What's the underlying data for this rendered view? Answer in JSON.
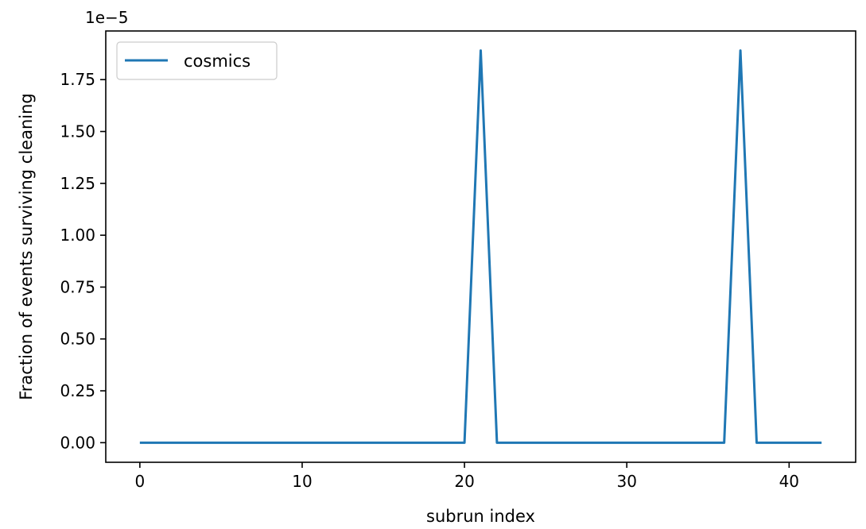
{
  "chart_data": {
    "type": "line",
    "title": "",
    "xlabel": "subrun index",
    "ylabel": "Fraction of events surviving cleaning",
    "y_offset_label": "1e−5",
    "y_scale": 1e-05,
    "xlim": [
      -2.1,
      44.1
    ],
    "ylim": [
      -9.45e-07,
      1.9845e-05
    ],
    "x_ticks": [
      0,
      10,
      20,
      30,
      40
    ],
    "x_tick_labels": [
      "0",
      "10",
      "20",
      "30",
      "40"
    ],
    "y_ticks": [
      0,
      2.5e-06,
      5e-06,
      7.5e-06,
      1e-05,
      1.25e-05,
      1.5e-05,
      1.75e-05
    ],
    "y_tick_labels": [
      "0.00",
      "0.25",
      "0.50",
      "0.75",
      "1.00",
      "1.25",
      "1.50",
      "1.75"
    ],
    "grid": false,
    "legend_position": "top-left",
    "series": [
      {
        "name": "cosmics",
        "color": "#1f77b4",
        "x": [
          0,
          1,
          2,
          3,
          4,
          5,
          6,
          7,
          8,
          9,
          10,
          11,
          12,
          13,
          14,
          15,
          16,
          17,
          18,
          19,
          20,
          21,
          22,
          23,
          24,
          25,
          26,
          27,
          28,
          29,
          30,
          31,
          32,
          33,
          34,
          35,
          36,
          37,
          38,
          39,
          40,
          41,
          42
        ],
        "y": [
          0,
          0,
          0,
          0,
          0,
          0,
          0,
          0,
          0,
          0,
          0,
          0,
          0,
          0,
          0,
          0,
          0,
          0,
          0,
          0,
          0,
          1.89e-05,
          0,
          0,
          0,
          0,
          0,
          0,
          0,
          0,
          0,
          0,
          0,
          0,
          0,
          0,
          0,
          1.89e-05,
          0,
          0,
          0,
          0,
          0
        ]
      }
    ]
  }
}
